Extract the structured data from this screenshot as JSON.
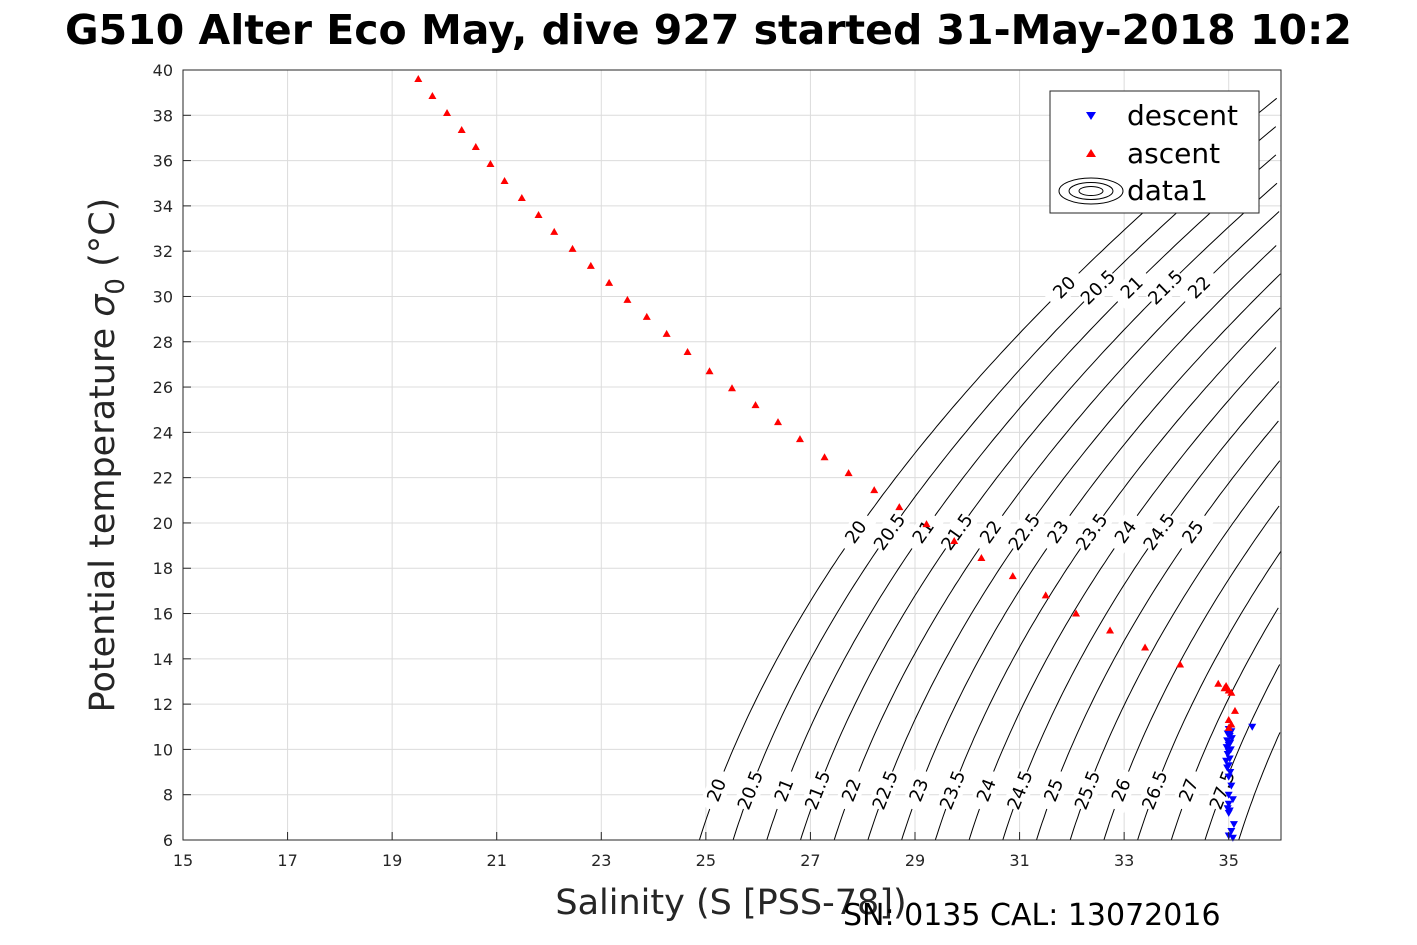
{
  "title": "G510 Alter Eco May, dive 927 started 31-May-2018 10:2",
  "footer": "SN: 0135  CAL: 13072016",
  "chart_data": {
    "type": "scatter",
    "xlabel": "Salinity (S [PSS-78])",
    "ylabel_main": "Potential temperature ",
    "ylabel_symbol": "σ",
    "ylabel_sub": "0",
    "ylabel_unit": " (°C)",
    "xlim": [
      15,
      36
    ],
    "ylim": [
      6,
      40
    ],
    "xticks": [
      15,
      17,
      19,
      21,
      23,
      25,
      27,
      29,
      31,
      33,
      35
    ],
    "yticks": [
      6,
      8,
      10,
      12,
      14,
      16,
      18,
      20,
      22,
      24,
      26,
      28,
      30,
      32,
      34,
      36,
      38,
      40
    ],
    "grid": true,
    "legend_position": "top-right",
    "series": [
      {
        "name": "descent",
        "marker": "triangle-down",
        "color": "#0000ff",
        "points": [
          [
            35.45,
            11.0
          ],
          [
            35.0,
            10.9
          ],
          [
            35.05,
            10.8
          ],
          [
            34.98,
            10.7
          ],
          [
            35.02,
            10.6
          ],
          [
            35.06,
            10.5
          ],
          [
            34.97,
            10.4
          ],
          [
            35.03,
            10.3
          ],
          [
            35.0,
            10.2
          ],
          [
            34.96,
            10.1
          ],
          [
            35.04,
            10.0
          ],
          [
            35.0,
            9.9
          ],
          [
            34.98,
            9.8
          ],
          [
            35.02,
            9.6
          ],
          [
            34.95,
            9.5
          ],
          [
            35.0,
            9.3
          ],
          [
            34.97,
            9.2
          ],
          [
            35.03,
            9.0
          ],
          [
            35.0,
            8.8
          ],
          [
            35.05,
            8.4
          ],
          [
            35.0,
            8.0
          ],
          [
            35.08,
            7.8
          ],
          [
            35.0,
            7.6
          ],
          [
            34.98,
            7.4
          ],
          [
            35.02,
            7.3
          ],
          [
            35.0,
            7.2
          ],
          [
            35.1,
            6.7
          ],
          [
            35.05,
            6.4
          ],
          [
            35.0,
            6.2
          ],
          [
            35.08,
            6.1
          ]
        ]
      },
      {
        "name": "ascent",
        "marker": "triangle-up",
        "color": "#ff0000",
        "points": [
          [
            19.5,
            39.6
          ],
          [
            19.77,
            38.85
          ],
          [
            20.05,
            38.1
          ],
          [
            20.33,
            37.35
          ],
          [
            20.6,
            36.6
          ],
          [
            20.88,
            35.85
          ],
          [
            21.15,
            35.1
          ],
          [
            21.48,
            34.35
          ],
          [
            21.8,
            33.6
          ],
          [
            22.1,
            32.85
          ],
          [
            22.45,
            32.1
          ],
          [
            22.8,
            31.35
          ],
          [
            23.15,
            30.6
          ],
          [
            23.5,
            29.85
          ],
          [
            23.87,
            29.1
          ],
          [
            24.25,
            28.35
          ],
          [
            24.65,
            27.55
          ],
          [
            25.07,
            26.7
          ],
          [
            25.5,
            25.95
          ],
          [
            25.95,
            25.2
          ],
          [
            26.38,
            24.45
          ],
          [
            26.8,
            23.7
          ],
          [
            27.27,
            22.9
          ],
          [
            27.73,
            22.2
          ],
          [
            28.22,
            21.45
          ],
          [
            28.7,
            20.7
          ],
          [
            29.22,
            19.95
          ],
          [
            29.75,
            19.2
          ],
          [
            30.27,
            18.45
          ],
          [
            30.87,
            17.65
          ],
          [
            31.5,
            16.8
          ],
          [
            32.08,
            16.0
          ],
          [
            32.73,
            15.25
          ],
          [
            33.4,
            14.5
          ],
          [
            34.07,
            13.75
          ],
          [
            34.8,
            12.9
          ],
          [
            34.92,
            12.7
          ],
          [
            35.0,
            12.6
          ],
          [
            35.05,
            12.5
          ],
          [
            34.95,
            12.8
          ],
          [
            35.0,
            11.3
          ],
          [
            35.05,
            11.1
          ],
          [
            35.0,
            10.95
          ],
          [
            35.12,
            11.7
          ]
        ]
      }
    ],
    "contour_legend_label": "data1",
    "density_contour_levels": [
      20,
      20.5,
      21,
      21.5,
      22,
      22.5,
      23,
      23.5,
      24,
      24.5,
      25,
      25.5,
      26,
      26.5,
      27,
      27.5,
      28
    ],
    "contour_labels_lower": [
      "20",
      "20.5",
      "21",
      "21.5",
      "22",
      "22.5",
      "23",
      "23.5",
      "24",
      "24.5",
      "25",
      "25.5",
      "26",
      "26.5",
      "27",
      "27.5"
    ],
    "contour_labels_middle": [
      "20",
      "20.5",
      "21",
      "21.5",
      "22",
      "22.5",
      "23",
      "23.5",
      "24",
      "24.5",
      "25"
    ],
    "contour_labels_upper": [
      "20",
      "20.5",
      "21",
      "21.5",
      "22"
    ]
  }
}
